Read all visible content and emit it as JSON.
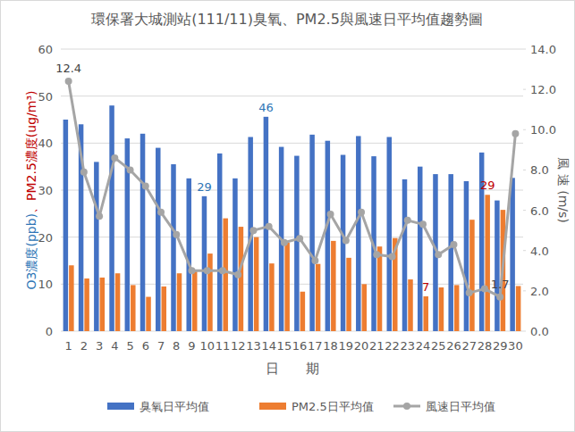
{
  "chart_data": {
    "type": "bar",
    "title": "環保署大城測站(111/11)臭氧、PM2.5與風速日平均值趨勢圖",
    "xlabel": "日　　期",
    "ylabel": "O3濃度(ppb)、PM2.5濃度(ug/m³)",
    "y2label": "風 速 (m/s)",
    "categories": [
      "1",
      "2",
      "3",
      "4",
      "5",
      "6",
      "7",
      "8",
      "9",
      "10",
      "11",
      "12",
      "13",
      "14",
      "15",
      "16",
      "17",
      "18",
      "19",
      "20",
      "21",
      "22",
      "23",
      "24",
      "25",
      "26",
      "27",
      "28",
      "29",
      "30"
    ],
    "ylim": [
      0,
      60
    ],
    "yticks": [
      0,
      10,
      20,
      30,
      40,
      50,
      60
    ],
    "y2lim": [
      0,
      14
    ],
    "y2ticks": [
      {
        "value": 0,
        "label": "0.0"
      },
      {
        "value": 2,
        "label": "2.0"
      },
      {
        "value": 4,
        "label": "4.0"
      },
      {
        "value": 6,
        "label": "6.0"
      },
      {
        "value": 8,
        "label": "8.0"
      },
      {
        "value": 10,
        "label": "10.0"
      },
      {
        "value": 12,
        "label": "12.0"
      },
      {
        "value": 14,
        "label": "14.0"
      }
    ],
    "grid": true,
    "legend": "bottom",
    "series": [
      {
        "name": "臭氧日平均值",
        "type": "bar",
        "color": "#4472c4",
        "values": [
          45,
          44,
          36,
          48,
          41,
          42,
          39,
          35.5,
          32.5,
          28.7,
          37.8,
          32.5,
          41.3,
          45.6,
          39.2,
          37.3,
          41.8,
          40.5,
          37.5,
          41.5,
          37.2,
          41.3,
          32.3,
          35,
          33.4,
          33.4,
          31.9,
          38,
          27.8,
          32.6
        ],
        "value_labels": [
          null,
          null,
          null,
          null,
          null,
          null,
          null,
          null,
          null,
          "29",
          null,
          null,
          null,
          "46",
          null,
          null,
          null,
          null,
          null,
          null,
          null,
          null,
          null,
          null,
          null,
          null,
          null,
          null,
          null,
          null
        ]
      },
      {
        "name": "PM2.5日平均值",
        "type": "bar",
        "color": "#ed7d31",
        "values": [
          14,
          11.2,
          11.4,
          12.3,
          9.8,
          7.3,
          9.5,
          12.3,
          13,
          16.5,
          24,
          22.2,
          20,
          14.4,
          18.8,
          8.4,
          14.3,
          19.2,
          15.6,
          10,
          18,
          19.8,
          11,
          7.4,
          9.3,
          9.8,
          23.7,
          29,
          25.8,
          9.6
        ],
        "value_labels": [
          null,
          null,
          null,
          null,
          null,
          null,
          null,
          null,
          null,
          null,
          null,
          null,
          null,
          null,
          null,
          null,
          null,
          null,
          null,
          null,
          null,
          null,
          null,
          "7",
          null,
          null,
          null,
          "29",
          null,
          null
        ]
      },
      {
        "name": "風速日平均值",
        "type": "line",
        "axis": "y2",
        "color": "#a5a5a5",
        "marker": "circle",
        "values": [
          12.4,
          7.9,
          5.7,
          8.6,
          8.0,
          7.2,
          5.9,
          4.8,
          3.0,
          3.0,
          3.0,
          2.8,
          5.0,
          5.2,
          4.4,
          4.6,
          3.5,
          5.8,
          4.5,
          5.9,
          3.8,
          3.7,
          5.5,
          5.3,
          3.8,
          4.3,
          1.9,
          2.1,
          1.7,
          9.8
        ],
        "value_labels": [
          "12.4",
          null,
          null,
          null,
          null,
          null,
          null,
          null,
          null,
          null,
          null,
          null,
          null,
          null,
          null,
          null,
          null,
          null,
          null,
          null,
          null,
          null,
          null,
          null,
          null,
          null,
          null,
          null,
          "1.7",
          null
        ]
      }
    ]
  }
}
